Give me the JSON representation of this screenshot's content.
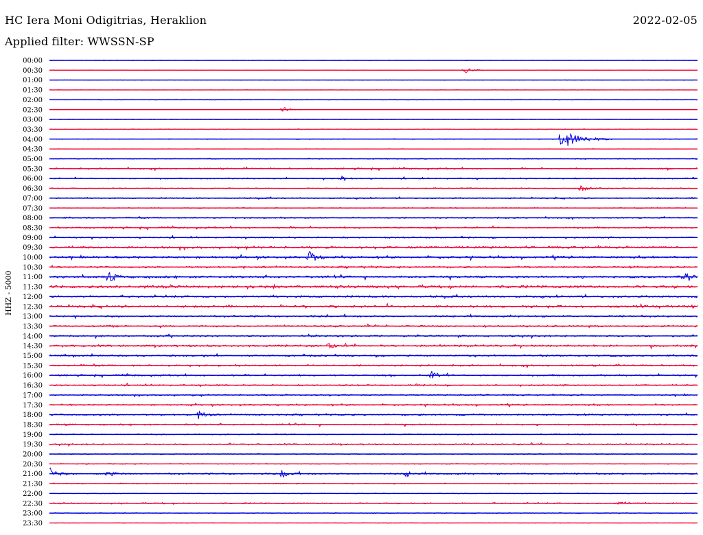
{
  "header": {
    "station": "HC Iera Moni Odigitrias, Heraklion",
    "date": "2022-02-05",
    "filter": "Applied filter: WWSSN-SP"
  },
  "chart_data": {
    "type": "line",
    "title": "HC Iera Moni Odigitrias, Heraklion",
    "ylabel": "HHZ - 5000",
    "colors": [
      "#0000dd",
      "#ee0033"
    ],
    "rows": [
      "00:00",
      "00:30",
      "01:00",
      "01:30",
      "02:00",
      "02:30",
      "03:00",
      "03:30",
      "04:00",
      "04:30",
      "05:00",
      "05:30",
      "06:00",
      "06:30",
      "07:00",
      "07:30",
      "08:00",
      "08:30",
      "09:00",
      "09:30",
      "10:00",
      "10:30",
      "11:00",
      "11:30",
      "12:00",
      "12:30",
      "13:00",
      "13:30",
      "14:00",
      "14:30",
      "15:00",
      "15:30",
      "16:00",
      "16:30",
      "17:00",
      "17:30",
      "18:00",
      "18:30",
      "19:00",
      "19:30",
      "20:00",
      "20:30",
      "21:00",
      "21:30",
      "22:00",
      "22:30",
      "23:00",
      "23:30"
    ],
    "noise": [
      0.3,
      0.3,
      0.3,
      0.3,
      0.3,
      0.3,
      0.3,
      0.4,
      0.4,
      0.3,
      0.6,
      0.8,
      0.7,
      0.6,
      0.7,
      0.6,
      0.7,
      0.9,
      0.8,
      1.2,
      1.2,
      1.0,
      1.2,
      1.4,
      1.1,
      1.2,
      1.0,
      0.9,
      0.9,
      1.1,
      0.9,
      0.9,
      0.9,
      0.8,
      0.8,
      0.8,
      0.9,
      0.8,
      0.6,
      0.8,
      0.6,
      0.5,
      0.9,
      0.6,
      0.4,
      0.7,
      0.5,
      0.3
    ],
    "events": [
      {
        "row": 1,
        "pos": 0.64,
        "amp": 5
      },
      {
        "row": 5,
        "pos": 0.36,
        "amp": 6
      },
      {
        "row": 8,
        "pos": 0.79,
        "amp": 15,
        "dur": 0.08
      },
      {
        "row": 12,
        "pos": 0.45,
        "amp": 4
      },
      {
        "row": 13,
        "pos": 0.82,
        "amp": 5
      },
      {
        "row": 20,
        "pos": 0.4,
        "amp": 10
      },
      {
        "row": 22,
        "pos": 0.09,
        "amp": 8
      },
      {
        "row": 22,
        "pos": 0.98,
        "amp": 9
      },
      {
        "row": 29,
        "pos": 0.43,
        "amp": 4
      },
      {
        "row": 32,
        "pos": 0.59,
        "amp": 8
      },
      {
        "row": 36,
        "pos": 0.23,
        "amp": 7
      },
      {
        "row": 42,
        "pos": 0.0,
        "amp": 9
      },
      {
        "row": 42,
        "pos": 0.09,
        "amp": 5
      },
      {
        "row": 42,
        "pos": 0.36,
        "amp": 7
      },
      {
        "row": 42,
        "pos": 0.55,
        "amp": 4
      },
      {
        "row": 45,
        "pos": 0.88,
        "amp": 3
      }
    ]
  }
}
